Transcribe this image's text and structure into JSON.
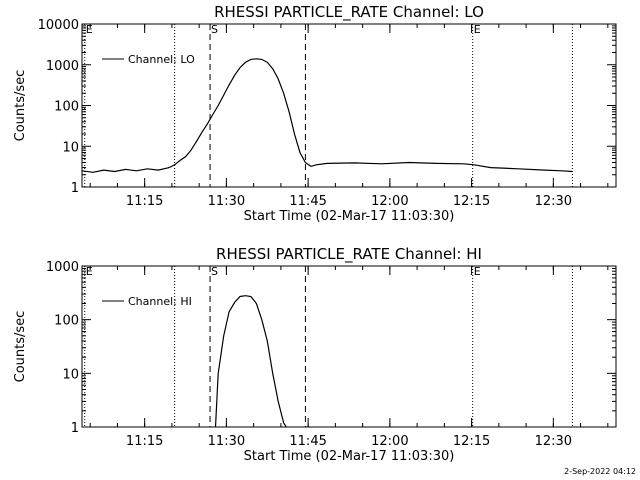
{
  "chart_data": [
    {
      "type": "line",
      "title": "RHESSI PARTICLE_RATE Channel: LO",
      "xlabel": "Start Time (02-Mar-17 11:03:30)",
      "ylabel": "Counts/sec",
      "yscale": "log",
      "ylim": [
        1,
        10000
      ],
      "xlim_minutes": [
        0,
        98
      ],
      "x_ticks": [
        {
          "minute": 11.5,
          "label": "11:15"
        },
        {
          "minute": 26.5,
          "label": "11:30"
        },
        {
          "minute": 41.5,
          "label": "11:45"
        },
        {
          "minute": 56.5,
          "label": "12:00"
        },
        {
          "minute": 71.5,
          "label": "12:15"
        },
        {
          "minute": 86.5,
          "label": "12:30"
        }
      ],
      "y_ticks": [
        {
          "value": 1,
          "label": "1"
        },
        {
          "value": 10,
          "label": "10"
        },
        {
          "value": 100,
          "label": "100"
        },
        {
          "value": 1000,
          "label": "1000"
        },
        {
          "value": 10000,
          "label": "10000"
        }
      ],
      "legend": "Channel: LO",
      "markers": [
        {
          "label": "E",
          "minute": 0.5,
          "style": "dotted"
        },
        {
          "label": "",
          "minute": 17.0,
          "style": "dotted"
        },
        {
          "label": "S",
          "minute": 23.5,
          "style": "dashed"
        },
        {
          "label": "",
          "minute": 41.0,
          "style": "dashed"
        },
        {
          "label": "E",
          "minute": 71.7,
          "style": "dotted"
        },
        {
          "label": "",
          "minute": 90.0,
          "style": "dotted"
        }
      ],
      "series": [
        {
          "name": "Channel: LO",
          "x": [
            0,
            2,
            4,
            6,
            8,
            10,
            12,
            14,
            16,
            17,
            18,
            19,
            20,
            21,
            22,
            23,
            24,
            25,
            26,
            27,
            28,
            29,
            30,
            31,
            32,
            33,
            34,
            35,
            36,
            37,
            38,
            39,
            40,
            41,
            42,
            43,
            45,
            50,
            55,
            60,
            65,
            70,
            72,
            75,
            80,
            85,
            88,
            90
          ],
          "y": [
            2.5,
            2.3,
            2.6,
            2.4,
            2.7,
            2.5,
            2.8,
            2.6,
            3.0,
            3.5,
            4.5,
            5.5,
            8,
            13,
            22,
            35,
            60,
            100,
            180,
            320,
            550,
            850,
            1150,
            1350,
            1400,
            1350,
            1150,
            800,
            450,
            200,
            70,
            20,
            7,
            4,
            3.2,
            3.5,
            3.8,
            3.9,
            3.7,
            4.0,
            3.8,
            3.7,
            3.5,
            3.0,
            2.8,
            2.6,
            2.5,
            2.4
          ]
        }
      ]
    },
    {
      "type": "line",
      "title": "RHESSI PARTICLE_RATE Channel: HI",
      "xlabel": "Start Time (02-Mar-17 11:03:30)",
      "ylabel": "Counts/sec",
      "yscale": "log",
      "ylim": [
        1,
        1000
      ],
      "xlim_minutes": [
        0,
        98
      ],
      "x_ticks": [
        {
          "minute": 11.5,
          "label": "11:15"
        },
        {
          "minute": 26.5,
          "label": "11:30"
        },
        {
          "minute": 41.5,
          "label": "11:45"
        },
        {
          "minute": 56.5,
          "label": "12:00"
        },
        {
          "minute": 71.5,
          "label": "12:15"
        },
        {
          "minute": 86.5,
          "label": "12:30"
        }
      ],
      "y_ticks": [
        {
          "value": 1,
          "label": "1"
        },
        {
          "value": 10,
          "label": "10"
        },
        {
          "value": 100,
          "label": "100"
        },
        {
          "value": 1000,
          "label": "1000"
        }
      ],
      "legend": "Channel: HI",
      "markers": [
        {
          "label": "E",
          "minute": 0.5,
          "style": "dotted"
        },
        {
          "label": "",
          "minute": 17.0,
          "style": "dotted"
        },
        {
          "label": "S",
          "minute": 23.5,
          "style": "dashed"
        },
        {
          "label": "",
          "minute": 41.0,
          "style": "dashed"
        },
        {
          "label": "E",
          "minute": 71.7,
          "style": "dotted"
        },
        {
          "label": "",
          "minute": 90.0,
          "style": "dotted"
        }
      ],
      "series": [
        {
          "name": "Channel: HI",
          "x": [
            24.5,
            25,
            26,
            27,
            28,
            29,
            30,
            31,
            32,
            33,
            34,
            35,
            36,
            37,
            37.5
          ],
          "y": [
            1,
            10,
            50,
            140,
            210,
            270,
            280,
            270,
            200,
            100,
            40,
            10,
            3,
            1.2,
            1
          ]
        }
      ]
    }
  ],
  "timestamp": "2-Sep-2022 04:12"
}
